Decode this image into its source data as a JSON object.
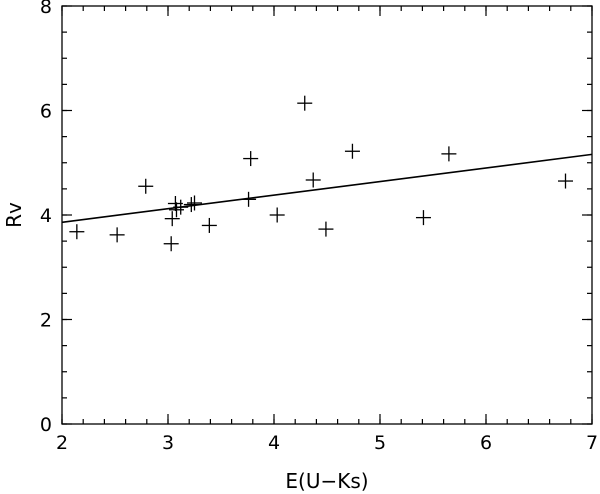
{
  "chart_data": {
    "type": "scatter",
    "title": "",
    "xlabel": "E(U−Ks)",
    "ylabel": "Rv",
    "xlim": [
      2,
      7
    ],
    "ylim": [
      0,
      8
    ],
    "x_major_ticks": [
      2,
      3,
      4,
      5,
      6,
      7
    ],
    "x_tick_labels": [
      "2",
      "3",
      "4",
      "5",
      "6",
      "7"
    ],
    "y_major_ticks": [
      0,
      2,
      4,
      6,
      8
    ],
    "y_tick_labels": [
      "0",
      "2",
      "4",
      "6",
      "8"
    ],
    "x_minor_step": 0.2,
    "y_minor_step": 0.5,
    "grid": false,
    "marker": "plus",
    "series": [
      {
        "points": [
          {
            "x": 2.14,
            "y": 3.68
          },
          {
            "x": 2.52,
            "y": 3.62
          },
          {
            "x": 2.79,
            "y": 4.55
          },
          {
            "x": 3.03,
            "y": 3.45
          },
          {
            "x": 3.04,
            "y": 3.93
          },
          {
            "x": 3.07,
            "y": 4.22
          },
          {
            "x": 3.08,
            "y": 4.1
          },
          {
            "x": 3.12,
            "y": 4.15
          },
          {
            "x": 3.22,
            "y": 4.2
          },
          {
            "x": 3.25,
            "y": 4.23
          },
          {
            "x": 3.39,
            "y": 3.8
          },
          {
            "x": 3.76,
            "y": 4.3
          },
          {
            "x": 3.78,
            "y": 5.08
          },
          {
            "x": 4.03,
            "y": 4.0
          },
          {
            "x": 4.29,
            "y": 6.14
          },
          {
            "x": 4.37,
            "y": 4.67
          },
          {
            "x": 4.49,
            "y": 3.73
          },
          {
            "x": 4.74,
            "y": 5.22
          },
          {
            "x": 5.41,
            "y": 3.95
          },
          {
            "x": 5.65,
            "y": 5.17
          },
          {
            "x": 6.75,
            "y": 4.65
          }
        ]
      }
    ],
    "fit_line": {
      "x": [
        2,
        7
      ],
      "y": [
        3.86,
        5.16
      ]
    }
  }
}
